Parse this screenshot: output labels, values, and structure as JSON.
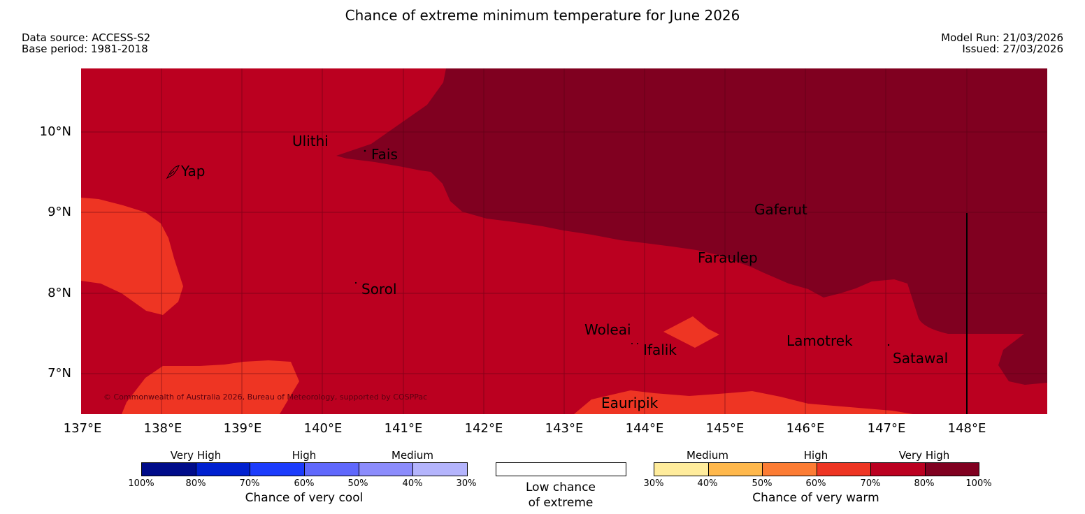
{
  "header": {
    "title": "Chance of extreme minimum temperature for June 2026",
    "data_source": "Data source: ACCESS-S2",
    "base_period": "Base period: 1981-2018",
    "model_run": "Model Run: 21/03/2026",
    "issued": "Issued: 27/03/2026"
  },
  "map": {
    "lat_labels": [
      "10°N",
      "9°N",
      "8°N",
      "7°N"
    ],
    "lon_labels": [
      "137°E",
      "138°E",
      "139°E",
      "140°E",
      "141°E",
      "142°E",
      "143°E",
      "144°E",
      "145°E",
      "146°E",
      "147°E",
      "148°E"
    ],
    "places": [
      {
        "name": "Yap"
      },
      {
        "name": "Ulithi"
      },
      {
        "name": "Fais"
      },
      {
        "name": "Gaferut"
      },
      {
        "name": "Faraulep"
      },
      {
        "name": "Sorol"
      },
      {
        "name": "Woleai"
      },
      {
        "name": "Ifalik"
      },
      {
        "name": "Lamotrek"
      },
      {
        "name": "Satawal"
      },
      {
        "name": "Eauripik"
      }
    ],
    "copyright": "© Commonwealth of Australia 2026, Bureau of Meteorology, supported by COSPPac"
  },
  "legend": {
    "cool": {
      "categories": [
        "Very High",
        "High",
        "Medium"
      ],
      "ticks": [
        "100%",
        "80%",
        "70%",
        "60%",
        "50%",
        "40%",
        "30%"
      ],
      "caption": "Chance of very cool",
      "colors": [
        "#000c8a",
        "#0020d0",
        "#1c3cfc",
        "#6068fc",
        "#8c8cfc",
        "#b4b4fc"
      ]
    },
    "low": {
      "caption_line1": "Low chance",
      "caption_line2": "of extreme"
    },
    "warm": {
      "categories": [
        "Medium",
        "High",
        "Very High"
      ],
      "ticks": [
        "30%",
        "40%",
        "50%",
        "60%",
        "70%",
        "80%",
        "100%"
      ],
      "caption": "Chance of very warm",
      "colors": [
        "#ffec9c",
        "#ffb84c",
        "#fc7c34",
        "#ee3523",
        "#bb0020",
        "#800020"
      ]
    }
  }
}
